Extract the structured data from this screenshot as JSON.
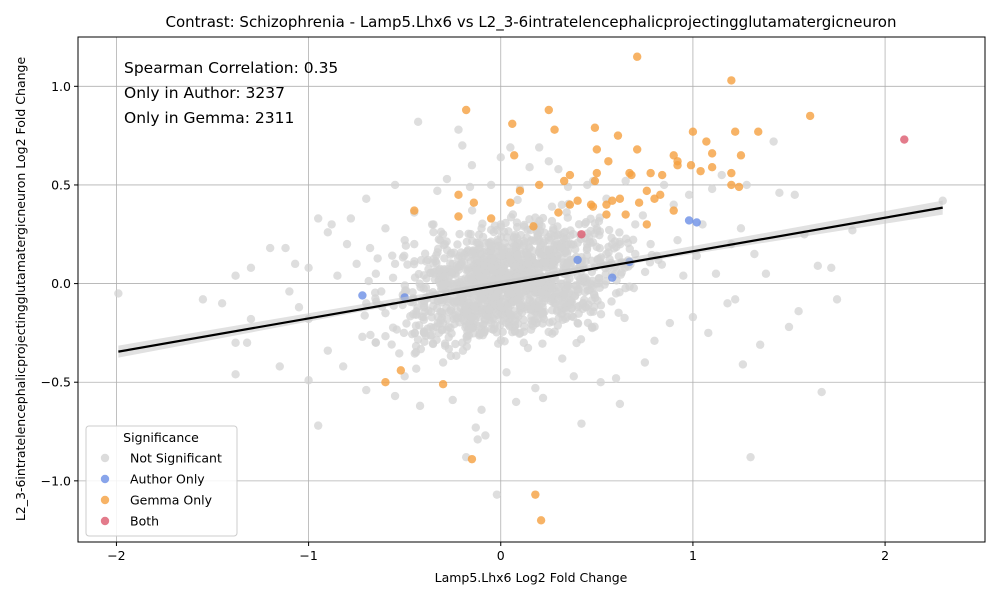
{
  "chart_data": {
    "type": "scatter",
    "title": "Contrast: Schizophrenia - Lamp5.Lhx6 vs L2_3-6intratelencephalicprojectingglutamatergicneuron",
    "xlabel": "Lamp5.Lhx6 Log2 Fold Change",
    "ylabel": "L2_3-6intratelencephalicprojectingglutamatergicneuron Log2 Fold Change",
    "xlim": [
      -2.2,
      2.52
    ],
    "ylim": [
      -1.31,
      1.25
    ],
    "xticks": [
      -2,
      -1,
      0,
      1,
      2
    ],
    "xtick_labels": [
      "−2",
      "−1",
      "0",
      "1",
      "2"
    ],
    "yticks": [
      -1.0,
      -0.5,
      0.0,
      0.5,
      1.0
    ],
    "ytick_labels": [
      "−1.0",
      "−0.5",
      "0.0",
      "0.5",
      "1.0"
    ],
    "grid": true,
    "annotations": [
      "Spearman Correlation: 0.35",
      "Only in Author: 3237",
      "Only in Gemma: 2311"
    ],
    "legend": {
      "title": "Significance",
      "placement": "lower-left",
      "entries": [
        "Not Significant",
        "Author Only",
        "Gemma Only",
        "Both"
      ]
    },
    "regression_line": {
      "x": [
        -1.99,
        2.3
      ],
      "y": [
        -0.345,
        0.385
      ],
      "color": "#000000"
    },
    "series": [
      {
        "name": "Not Significant",
        "color": "#d3d3d3",
        "points": [
          [
            -1.99,
            -0.05
          ],
          [
            -1.55,
            -0.08
          ],
          [
            -1.45,
            -0.1
          ],
          [
            -1.38,
            0.04
          ],
          [
            -1.38,
            -0.3
          ],
          [
            -1.38,
            -0.46
          ],
          [
            -1.32,
            -0.3
          ],
          [
            -1.3,
            -0.18
          ],
          [
            -1.3,
            0.08
          ],
          [
            -1.2,
            0.18
          ],
          [
            -1.15,
            -0.42
          ],
          [
            -1.12,
            0.18
          ],
          [
            -1.1,
            -0.04
          ],
          [
            -1.07,
            0.1
          ],
          [
            -1.05,
            -0.12
          ],
          [
            -1.0,
            0.08
          ],
          [
            -1.0,
            -0.18
          ],
          [
            -1.0,
            -0.49
          ],
          [
            -0.95,
            0.33
          ],
          [
            -0.95,
            -0.72
          ],
          [
            -0.9,
            0.26
          ],
          [
            -0.9,
            -0.34
          ],
          [
            -0.88,
            0.3
          ],
          [
            -0.85,
            0.04
          ],
          [
            -0.82,
            -0.42
          ],
          [
            -0.8,
            0.2
          ],
          [
            -0.78,
            0.33
          ],
          [
            -0.75,
            0.1
          ],
          [
            -0.72,
            -0.27
          ],
          [
            -0.7,
            0.43
          ],
          [
            -0.7,
            -0.54
          ],
          [
            -0.68,
            0.18
          ],
          [
            -0.65,
            -0.3
          ],
          [
            -0.6,
            0.28
          ],
          [
            -0.55,
            0.5
          ],
          [
            -0.55,
            -0.57
          ],
          [
            -0.5,
            -0.47
          ],
          [
            -0.45,
            0.36
          ],
          [
            -0.43,
            0.82
          ],
          [
            -0.42,
            -0.62
          ],
          [
            -0.38,
            0.12
          ],
          [
            -0.35,
            0.3
          ],
          [
            -0.33,
            0.47
          ],
          [
            -0.3,
            -0.4
          ],
          [
            -0.28,
            0.53
          ],
          [
            -0.25,
            -0.59
          ],
          [
            -0.22,
            0.78
          ],
          [
            -0.2,
            0.7
          ],
          [
            -0.18,
            -0.88
          ],
          [
            -0.16,
            0.49
          ],
          [
            -0.15,
            0.6
          ],
          [
            -0.13,
            -0.73
          ],
          [
            -0.12,
            -0.79
          ],
          [
            -0.1,
            -0.64
          ],
          [
            -0.08,
            -0.77
          ],
          [
            -0.05,
            0.5
          ],
          [
            -0.02,
            -1.07
          ],
          [
            0.0,
            0.64
          ],
          [
            0.03,
            -0.45
          ],
          [
            0.05,
            0.69
          ],
          [
            0.08,
            -0.6
          ],
          [
            0.1,
            0.48
          ],
          [
            0.12,
            -0.3
          ],
          [
            0.15,
            0.59
          ],
          [
            0.18,
            -0.53
          ],
          [
            0.2,
            0.69
          ],
          [
            0.22,
            -0.58
          ],
          [
            0.25,
            0.62
          ],
          [
            0.3,
            0.58
          ],
          [
            0.32,
            -0.38
          ],
          [
            0.35,
            0.49
          ],
          [
            0.38,
            -0.47
          ],
          [
            0.42,
            -0.71
          ],
          [
            0.45,
            0.5
          ],
          [
            0.48,
            0.52
          ],
          [
            0.52,
            -0.5
          ],
          [
            0.55,
            0.43
          ],
          [
            0.6,
            -0.48
          ],
          [
            0.62,
            -0.61
          ],
          [
            0.65,
            0.52
          ],
          [
            0.7,
            0.3
          ],
          [
            0.75,
            -0.4
          ],
          [
            0.78,
            0.2
          ],
          [
            0.8,
            -0.29
          ],
          [
            0.82,
            0.12
          ],
          [
            0.85,
            0.5
          ],
          [
            0.88,
            -0.2
          ],
          [
            0.9,
            0.4
          ],
          [
            0.92,
            0.22
          ],
          [
            0.95,
            0.04
          ],
          [
            0.98,
            0.45
          ],
          [
            1.0,
            -0.17
          ],
          [
            1.02,
            0.14
          ],
          [
            1.05,
            0.3
          ],
          [
            1.08,
            -0.25
          ],
          [
            1.1,
            0.48
          ],
          [
            1.12,
            0.05
          ],
          [
            1.15,
            0.55
          ],
          [
            1.18,
            -0.1
          ],
          [
            1.2,
            0.2
          ],
          [
            1.22,
            -0.08
          ],
          [
            1.25,
            0.28
          ],
          [
            1.26,
            -0.41
          ],
          [
            1.28,
            0.5
          ],
          [
            1.3,
            -0.88
          ],
          [
            1.32,
            0.15
          ],
          [
            1.35,
            -0.31
          ],
          [
            1.38,
            0.05
          ],
          [
            1.42,
            0.72
          ],
          [
            1.45,
            0.46
          ],
          [
            1.5,
            -0.22
          ],
          [
            1.53,
            0.45
          ],
          [
            1.55,
            -0.14
          ],
          [
            1.58,
            0.25
          ],
          [
            1.65,
            0.09
          ],
          [
            1.67,
            -0.55
          ],
          [
            1.72,
            0.08
          ],
          [
            1.75,
            -0.08
          ],
          [
            1.83,
            0.27
          ],
          [
            2.3,
            0.42
          ],
          [
            -0.4,
            -0.1
          ],
          [
            -0.35,
            0.05
          ],
          [
            -0.3,
            -0.2
          ],
          [
            -0.25,
            0.1
          ],
          [
            -0.2,
            -0.05
          ],
          [
            -0.15,
            0.15
          ],
          [
            -0.1,
            -0.15
          ],
          [
            -0.05,
            0.08
          ],
          [
            0.0,
            -0.1
          ],
          [
            0.05,
            0.12
          ],
          [
            0.1,
            -0.05
          ],
          [
            0.15,
            0.18
          ],
          [
            0.2,
            -0.12
          ],
          [
            0.25,
            0.05
          ],
          [
            0.3,
            -0.08
          ],
          [
            0.35,
            0.1
          ],
          [
            0.4,
            -0.03
          ],
          [
            0.45,
            0.2
          ],
          [
            0.5,
            0.0
          ],
          [
            0.55,
            0.15
          ],
          [
            -0.45,
            0.2
          ],
          [
            -0.5,
            -0.05
          ],
          [
            -0.55,
            0.1
          ],
          [
            -0.6,
            -0.15
          ],
          [
            -0.65,
            0.05
          ],
          [
            -0.7,
            -0.1
          ],
          [
            0.6,
            -0.05
          ],
          [
            0.65,
            0.1
          ],
          [
            -0.3,
            0.25
          ],
          [
            0.2,
            0.3
          ],
          [
            -0.2,
            -0.3
          ],
          [
            0.1,
            -0.25
          ],
          [
            0.3,
            0.25
          ],
          [
            -0.1,
            0.28
          ],
          [
            0.0,
            0.3
          ],
          [
            0.4,
            -0.2
          ],
          [
            -0.4,
            -0.25
          ],
          [
            0.5,
            0.28
          ],
          [
            -0.5,
            0.22
          ],
          [
            0.7,
            0.15
          ]
        ]
      },
      {
        "name": "Author Only",
        "color": "#6b8fe6",
        "points": [
          [
            -0.72,
            -0.06
          ],
          [
            -0.5,
            -0.07
          ],
          [
            0.4,
            0.12
          ],
          [
            0.58,
            0.03
          ],
          [
            0.67,
            0.11
          ],
          [
            0.98,
            0.32
          ],
          [
            1.02,
            0.31
          ]
        ]
      },
      {
        "name": "Gemma Only",
        "color": "#f5a040",
        "points": [
          [
            0.71,
            1.15
          ],
          [
            1.2,
            1.03
          ],
          [
            -0.18,
            0.88
          ],
          [
            0.25,
            0.88
          ],
          [
            0.06,
            0.81
          ],
          [
            0.28,
            0.78
          ],
          [
            0.49,
            0.79
          ],
          [
            1.0,
            0.77
          ],
          [
            1.22,
            0.77
          ],
          [
            1.34,
            0.77
          ],
          [
            0.61,
            0.75
          ],
          [
            1.07,
            0.72
          ],
          [
            0.71,
            0.68
          ],
          [
            0.5,
            0.68
          ],
          [
            0.07,
            0.65
          ],
          [
            1.1,
            0.66
          ],
          [
            1.25,
            0.65
          ],
          [
            0.9,
            0.65
          ],
          [
            0.92,
            0.62
          ],
          [
            0.56,
            0.62
          ],
          [
            0.99,
            0.6
          ],
          [
            0.92,
            0.6
          ],
          [
            1.1,
            0.59
          ],
          [
            1.04,
            0.57
          ],
          [
            0.67,
            0.56
          ],
          [
            0.5,
            0.56
          ],
          [
            0.78,
            0.56
          ],
          [
            0.68,
            0.55
          ],
          [
            0.84,
            0.55
          ],
          [
            0.36,
            0.55
          ],
          [
            1.2,
            0.56
          ],
          [
            1.61,
            0.85
          ],
          [
            0.33,
            0.52
          ],
          [
            0.49,
            0.52
          ],
          [
            1.2,
            0.5
          ],
          [
            1.24,
            0.49
          ],
          [
            0.2,
            0.5
          ],
          [
            0.76,
            0.47
          ],
          [
            0.83,
            0.45
          ],
          [
            0.1,
            0.47
          ],
          [
            0.8,
            0.43
          ],
          [
            0.62,
            0.43
          ],
          [
            0.58,
            0.42
          ],
          [
            -0.22,
            0.45
          ],
          [
            -0.14,
            0.41
          ],
          [
            0.05,
            0.41
          ],
          [
            0.4,
            0.42
          ],
          [
            0.36,
            0.4
          ],
          [
            0.47,
            0.4
          ],
          [
            0.55,
            0.4
          ],
          [
            0.72,
            0.41
          ],
          [
            0.48,
            0.39
          ],
          [
            0.9,
            0.37
          ],
          [
            0.3,
            0.36
          ],
          [
            -0.45,
            0.37
          ],
          [
            -0.22,
            0.34
          ],
          [
            0.65,
            0.35
          ],
          [
            0.55,
            0.35
          ],
          [
            0.76,
            0.3
          ],
          [
            -0.05,
            0.33
          ],
          [
            0.17,
            0.29
          ],
          [
            -0.6,
            -0.5
          ],
          [
            -0.3,
            -0.51
          ],
          [
            -0.52,
            -0.44
          ],
          [
            -0.15,
            -0.89
          ],
          [
            0.18,
            -1.07
          ],
          [
            0.21,
            -1.2
          ]
        ]
      },
      {
        "name": "Both",
        "color": "#dc5a6e",
        "points": [
          [
            2.1,
            0.73
          ],
          [
            0.42,
            0.25
          ]
        ]
      }
    ]
  }
}
